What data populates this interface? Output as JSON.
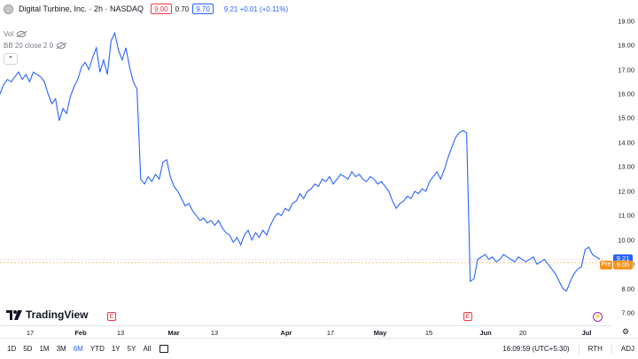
{
  "header": {
    "symbol_title": "Digital Turbine, Inc. · 2h · NASDAQ",
    "sell_price": "9.00",
    "spread": "0.70",
    "buy_price": "9.70",
    "last_change": "9.21 +0.01 (+0.11%)"
  },
  "indicators": [
    {
      "label": "Vol"
    },
    {
      "label": "BB 20 close 2 0"
    }
  ],
  "colors": {
    "line": "#2962ff",
    "pre": "#f7931a",
    "event": "#f23645",
    "accent": "#2962ff"
  },
  "price_axis": {
    "ticks": [
      "19.00",
      "18.00",
      "17.00",
      "16.00",
      "15.00",
      "14.00",
      "13.00",
      "12.00",
      "11.00",
      "10.00",
      "9.00",
      "8.00",
      "7.00"
    ],
    "last_tag": "9.21",
    "pre_tag": "9.05",
    "pre_label": "Pre"
  },
  "time_axis": {
    "ticks": [
      "17",
      "Feb",
      "13",
      "Mar",
      "13",
      "Apr",
      "17",
      "May",
      "15",
      "Jun",
      "20",
      "Jul"
    ]
  },
  "events": [
    {
      "type": "earnings",
      "label": "E"
    },
    {
      "type": "earnings",
      "label": "E"
    },
    {
      "type": "dividend",
      "label": "⚡"
    }
  ],
  "chart_data": {
    "type": "line",
    "ylim": [
      7,
      19.5
    ],
    "series_points": [
      16.0,
      16.4,
      16.6,
      16.5,
      16.7,
      16.9,
      16.6,
      16.8,
      16.5,
      16.9,
      16.8,
      16.7,
      16.5,
      16.0,
      15.6,
      15.8,
      14.9,
      15.4,
      15.2,
      15.9,
      16.3,
      16.6,
      17.1,
      17.3,
      17.0,
      17.5,
      17.9,
      16.9,
      17.4,
      16.8,
      18.2,
      18.5,
      17.8,
      17.4,
      17.9,
      17.1,
      16.5,
      16.2,
      12.5,
      12.3,
      12.6,
      12.4,
      12.7,
      12.5,
      13.2,
      13.3,
      12.6,
      12.2,
      12.0,
      11.7,
      11.4,
      11.5,
      11.2,
      11.0,
      10.8,
      10.9,
      10.7,
      10.8,
      10.6,
      10.8,
      10.5,
      10.3,
      10.2,
      9.9,
      10.1,
      9.8,
      10.2,
      10.4,
      10.0,
      10.3,
      10.1,
      10.4,
      10.2,
      10.6,
      10.9,
      11.1,
      11.0,
      11.3,
      11.2,
      11.5,
      11.6,
      11.9,
      11.7,
      12.0,
      12.1,
      12.3,
      12.2,
      12.5,
      12.4,
      12.6,
      12.3,
      12.5,
      12.7,
      12.6,
      12.5,
      12.8,
      12.6,
      12.7,
      12.5,
      12.4,
      12.6,
      12.5,
      12.3,
      12.4,
      12.2,
      12.0,
      11.6,
      11.3,
      11.5,
      11.6,
      11.8,
      11.7,
      12.0,
      11.9,
      12.1,
      12.0,
      12.4,
      12.6,
      12.8,
      12.5,
      12.9,
      13.4,
      13.8,
      14.2,
      14.4,
      14.5,
      14.4,
      8.3,
      8.4,
      9.2,
      9.3,
      9.4,
      9.2,
      9.3,
      9.1,
      9.2,
      9.4,
      9.3,
      9.2,
      9.1,
      9.3,
      9.2,
      9.1,
      9.2,
      9.3,
      9.0,
      9.1,
      9.2,
      9.0,
      8.8,
      8.6,
      8.3,
      8.0,
      7.9,
      8.3,
      8.6,
      8.8,
      8.9,
      9.6,
      9.7,
      9.4,
      9.3,
      9.21
    ],
    "last_value": 9.21,
    "pre_value": 9.05
  },
  "toolbar": {
    "ranges": [
      "1D",
      "5D",
      "1M",
      "3M",
      "6M",
      "YTD",
      "1Y",
      "5Y",
      "All"
    ],
    "active_range": "6M",
    "time": "16:09:59 (UTC+5:30)",
    "session": "RTH",
    "adj": "ADJ"
  },
  "branding": {
    "logo_text": "TradingView"
  }
}
